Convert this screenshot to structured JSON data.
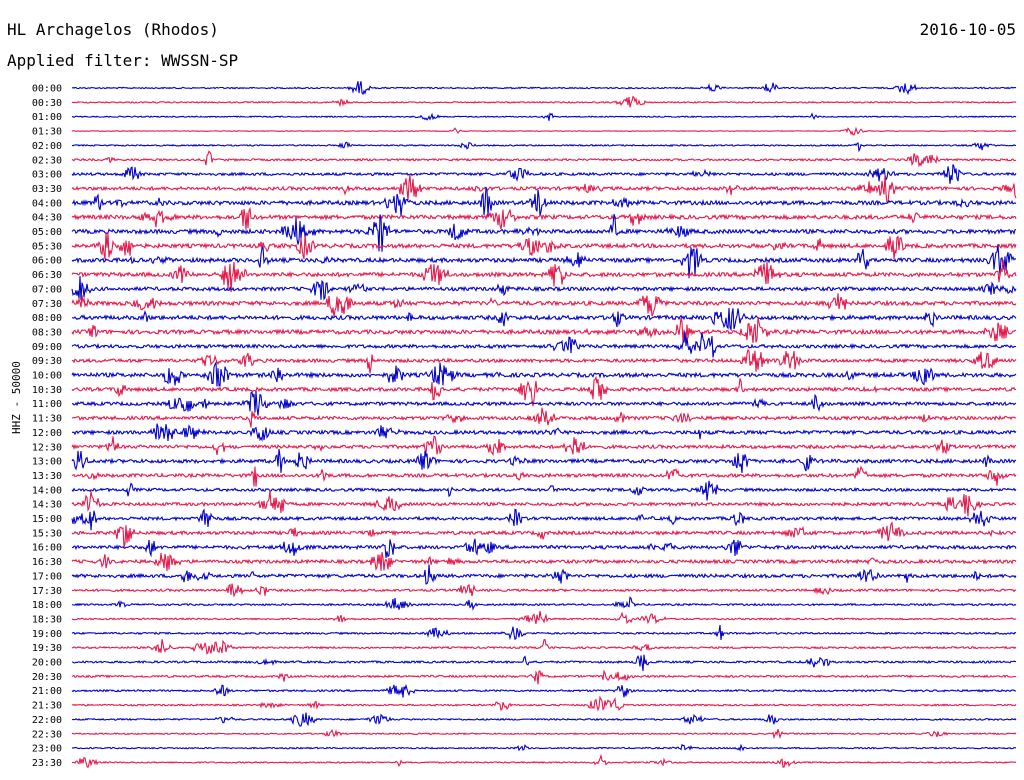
{
  "header": {
    "station": "HL Archagelos (Rhodos)",
    "date": "2016-10-05",
    "filter": "Applied filter: WWSSN-SP"
  },
  "chart_data": {
    "type": "line",
    "title": "HL Archagelos (Rhodos)",
    "ylabel": "HHZ - 50000",
    "xlabel": "",
    "tick_labels": [
      "00:00",
      "00:30",
      "01:00",
      "01:30",
      "02:00",
      "02:30",
      "03:00",
      "03:30",
      "04:00",
      "04:30",
      "05:00",
      "05:30",
      "06:00",
      "06:30",
      "07:00",
      "07:30",
      "08:00",
      "08:30",
      "09:00",
      "09:30",
      "10:00",
      "10:30",
      "11:00",
      "11:30",
      "12:00",
      "12:30",
      "13:00",
      "13:30",
      "14:00",
      "14:30",
      "15:00",
      "15:30",
      "16:00",
      "16:30",
      "17:00",
      "17:30",
      "18:00",
      "18:30",
      "19:00",
      "19:30",
      "20:00",
      "20:30",
      "21:00",
      "21:30",
      "22:00",
      "22:30",
      "23:00",
      "23:30"
    ],
    "colors": {
      "even_rows": "#0000cc",
      "odd_rows": "#e6194b"
    },
    "trace_noise": [
      0.6,
      0.6,
      0.5,
      0.3,
      0.6,
      0.9,
      1.2,
      1.5,
      1.8,
      1.8,
      1.8,
      1.8,
      1.8,
      1.8,
      1.6,
      1.8,
      1.8,
      1.8,
      1.5,
      1.5,
      1.8,
      1.6,
      1.5,
      1.5,
      1.6,
      1.5,
      1.6,
      1.5,
      1.3,
      1.4,
      1.4,
      1.5,
      1.5,
      1.5,
      1.5,
      1.0,
      0.8,
      0.7,
      0.8,
      0.8,
      0.9,
      0.9,
      0.8,
      0.7,
      0.7,
      0.6,
      0.6,
      0.6
    ],
    "grid": false,
    "legend": "none"
  }
}
